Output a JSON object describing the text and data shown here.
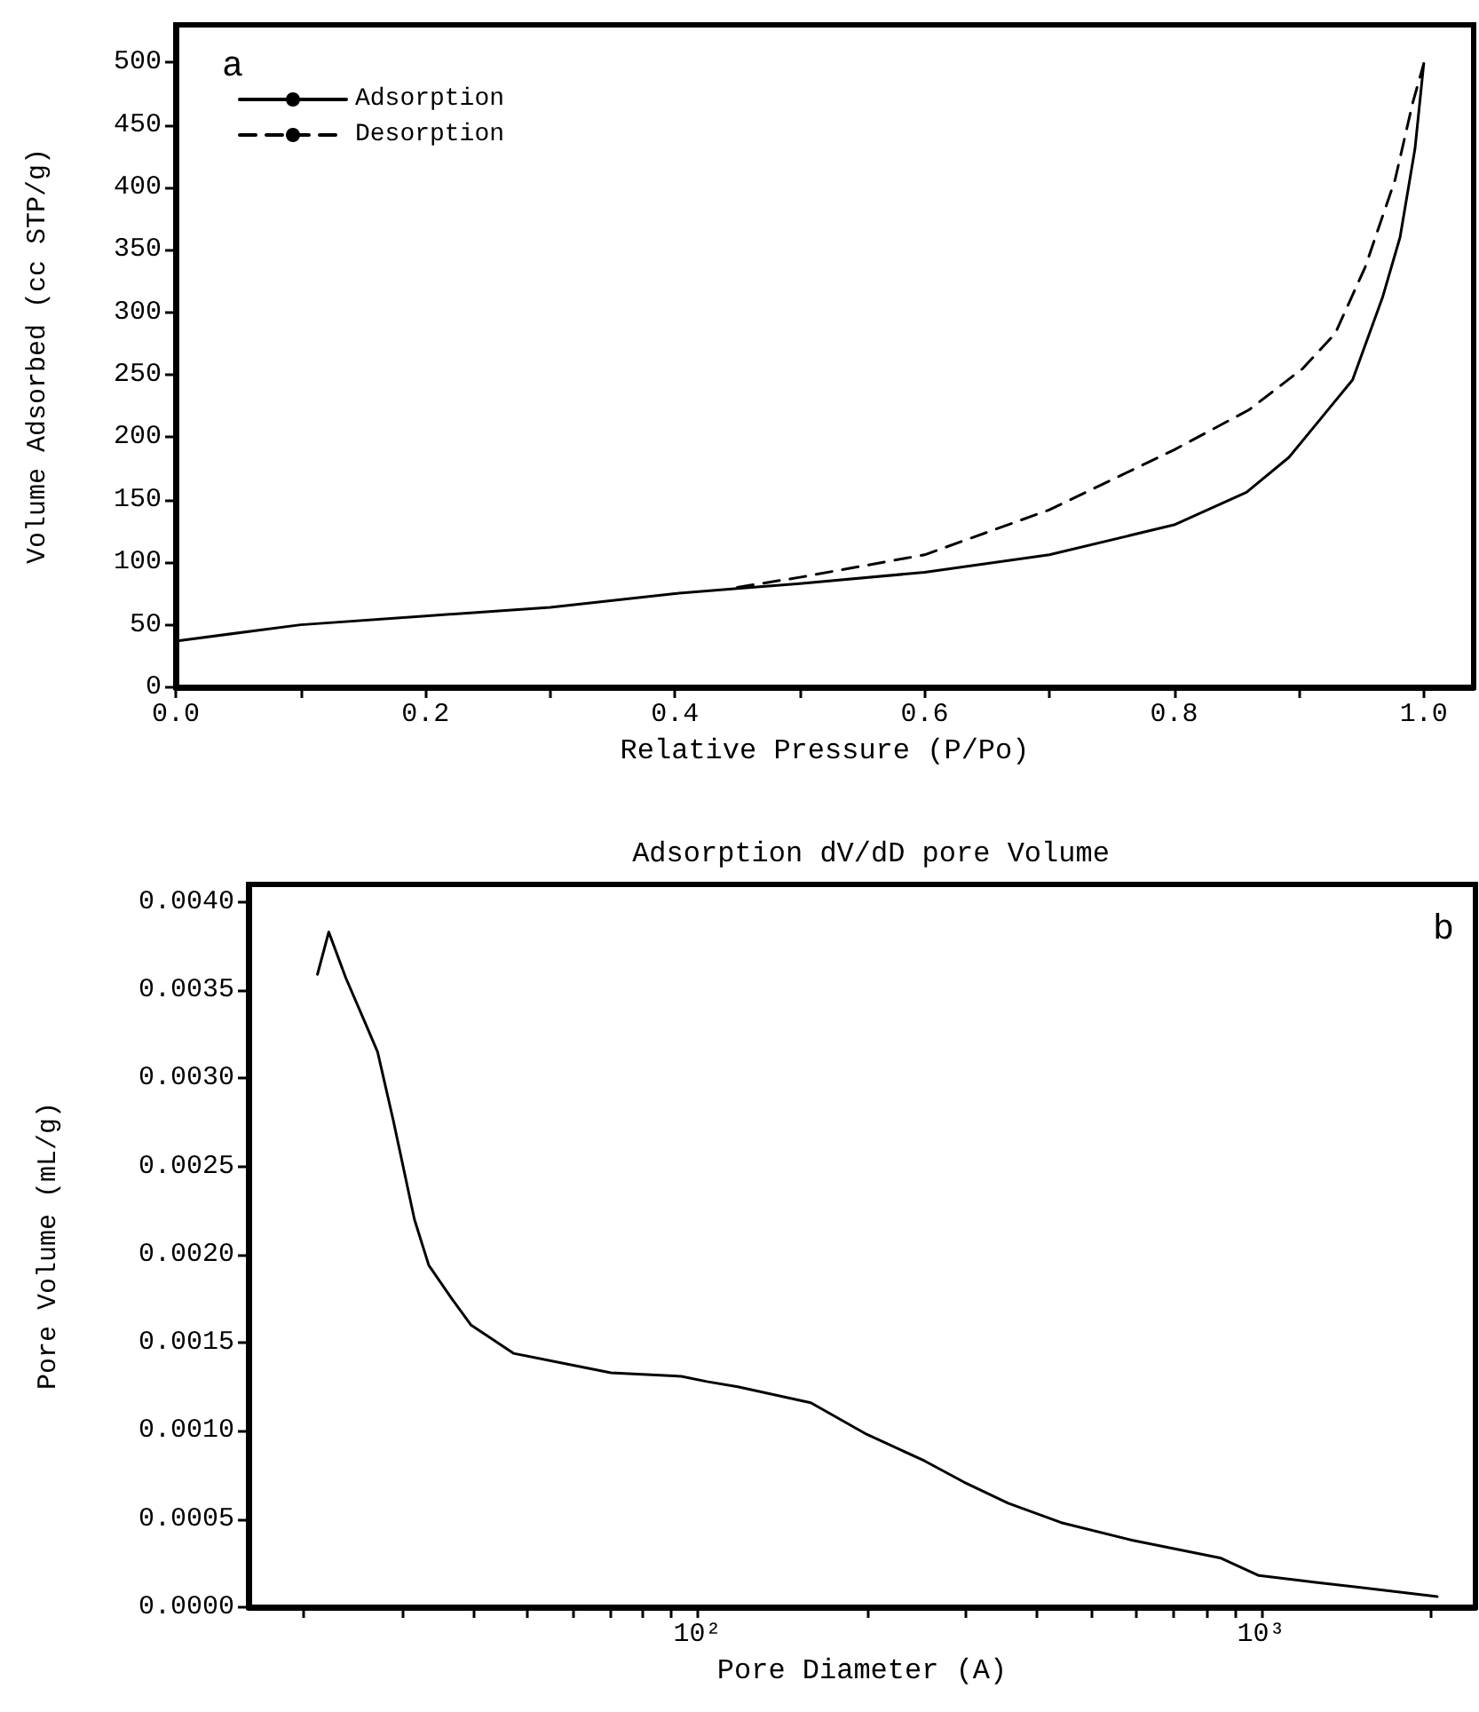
{
  "chart_data": [
    {
      "type": "line",
      "xlabel": "Relative Pressure (P/Po)",
      "ylabel": "Volume Adsorbed (cc STP/g)",
      "annotations": [
        "a"
      ],
      "xlim": [
        0,
        1.04
      ],
      "ylim": [
        0,
        530
      ],
      "xticks": [
        {
          "value": 0,
          "label": "0.0"
        },
        {
          "value": 0.1,
          "label": null
        },
        {
          "value": 0.2,
          "label": "0.2"
        },
        {
          "value": 0.3,
          "label": null
        },
        {
          "value": 0.4,
          "label": "0.4"
        },
        {
          "value": 0.5,
          "label": null
        },
        {
          "value": 0.6,
          "label": "0.6"
        },
        {
          "value": 0.7,
          "label": null
        },
        {
          "value": 0.8,
          "label": "0.8"
        },
        {
          "value": 0.9,
          "label": null
        },
        {
          "value": 1.0,
          "label": "1.0"
        }
      ],
      "yticks": [
        0,
        50,
        100,
        150,
        200,
        250,
        300,
        350,
        400,
        450,
        500
      ],
      "grid": false,
      "legend": "top left",
      "marker": "none",
      "series": [
        {
          "name": "Adsorption",
          "color": "#000000",
          "line_style": "solid",
          "x": [
            0,
            0.1,
            0.2,
            0.3,
            0.4,
            0.45,
            0.5,
            0.6,
            0.7,
            0.8,
            0.858,
            0.892,
            0.92,
            0.943,
            0.967,
            0.981,
            0.993,
            1.0
          ],
          "values": [
            37,
            50,
            57,
            64,
            75,
            79,
            83,
            92,
            106,
            130,
            156,
            184,
            218,
            246,
            312,
            360,
            431,
            499
          ]
        },
        {
          "name": "Desorption",
          "color": "#000000",
          "line_style": "dashed",
          "x": [
            0.45,
            0.5,
            0.6,
            0.7,
            0.8,
            0.86,
            0.903,
            0.929,
            0.953,
            0.977,
            0.991,
            1.0
          ],
          "values": [
            80,
            88,
            106,
            142,
            190,
            222,
            255,
            283,
            336,
            406,
            467,
            499
          ]
        }
      ]
    },
    {
      "type": "line",
      "title": "Adsorption dV/dD pore Volume",
      "xlabel": "Pore Diameter (A)",
      "ylabel": "Pore Volume (mL/g)",
      "annotations": [
        "b"
      ],
      "log": "x",
      "xlim": [
        16,
        2400
      ],
      "ylim": [
        0,
        0.0041
      ],
      "xticks": [
        {
          "value": 20,
          "label": null
        },
        {
          "value": 30,
          "label": null
        },
        {
          "value": 40,
          "label": null
        },
        {
          "value": 50,
          "label": null
        },
        {
          "value": 60,
          "label": null
        },
        {
          "value": 70,
          "label": null
        },
        {
          "value": 80,
          "label": null
        },
        {
          "value": 90,
          "label": null
        },
        {
          "value": 100,
          "label": "10²"
        },
        {
          "value": 200,
          "label": null
        },
        {
          "value": 300,
          "label": null
        },
        {
          "value": 400,
          "label": null
        },
        {
          "value": 500,
          "label": null
        },
        {
          "value": 600,
          "label": null
        },
        {
          "value": 700,
          "label": null
        },
        {
          "value": 800,
          "label": null
        },
        {
          "value": 900,
          "label": null
        },
        {
          "value": 1000,
          "label": "10³"
        },
        {
          "value": 2000,
          "label": null
        }
      ],
      "yticks": [
        {
          "value": 0,
          "label": "0.0000"
        },
        {
          "value": 0.0005,
          "label": "0.0005"
        },
        {
          "value": 0.001,
          "label": "0.0010"
        },
        {
          "value": 0.0015,
          "label": "0.0015"
        },
        {
          "value": 0.002,
          "label": "0.0020"
        },
        {
          "value": 0.0025,
          "label": "0.0025"
        },
        {
          "value": 0.003,
          "label": "0.0030"
        },
        {
          "value": 0.0035,
          "label": "0.0035"
        },
        {
          "value": 0.004,
          "label": "0.0040"
        }
      ],
      "grid": false,
      "marker": "none",
      "series": [
        {
          "color": "#000000",
          "x": [
            21.2,
            22.2,
            23.8,
            25.8,
            27.1,
            28.9,
            31.5,
            33.4,
            36.7,
            39.7,
            47.2,
            58.6,
            70.3,
            93.7,
            104,
            118,
            159,
            200,
            253,
            297,
            356,
            442,
            590,
            846,
            991,
            1259,
            1620,
            2053
          ],
          "values": [
            0.00359,
            0.00383,
            0.00357,
            0.00331,
            0.00315,
            0.00276,
            0.0022,
            0.00194,
            0.00175,
            0.0016,
            0.00144,
            0.00138,
            0.00133,
            0.00131,
            0.00128,
            0.00125,
            0.00116,
            0.00098,
            0.00083,
            0.00071,
            0.00059,
            0.00048,
            0.00038,
            0.00028,
            0.00018,
            0.00014,
            0.0001,
            6e-05
          ]
        }
      ]
    }
  ]
}
